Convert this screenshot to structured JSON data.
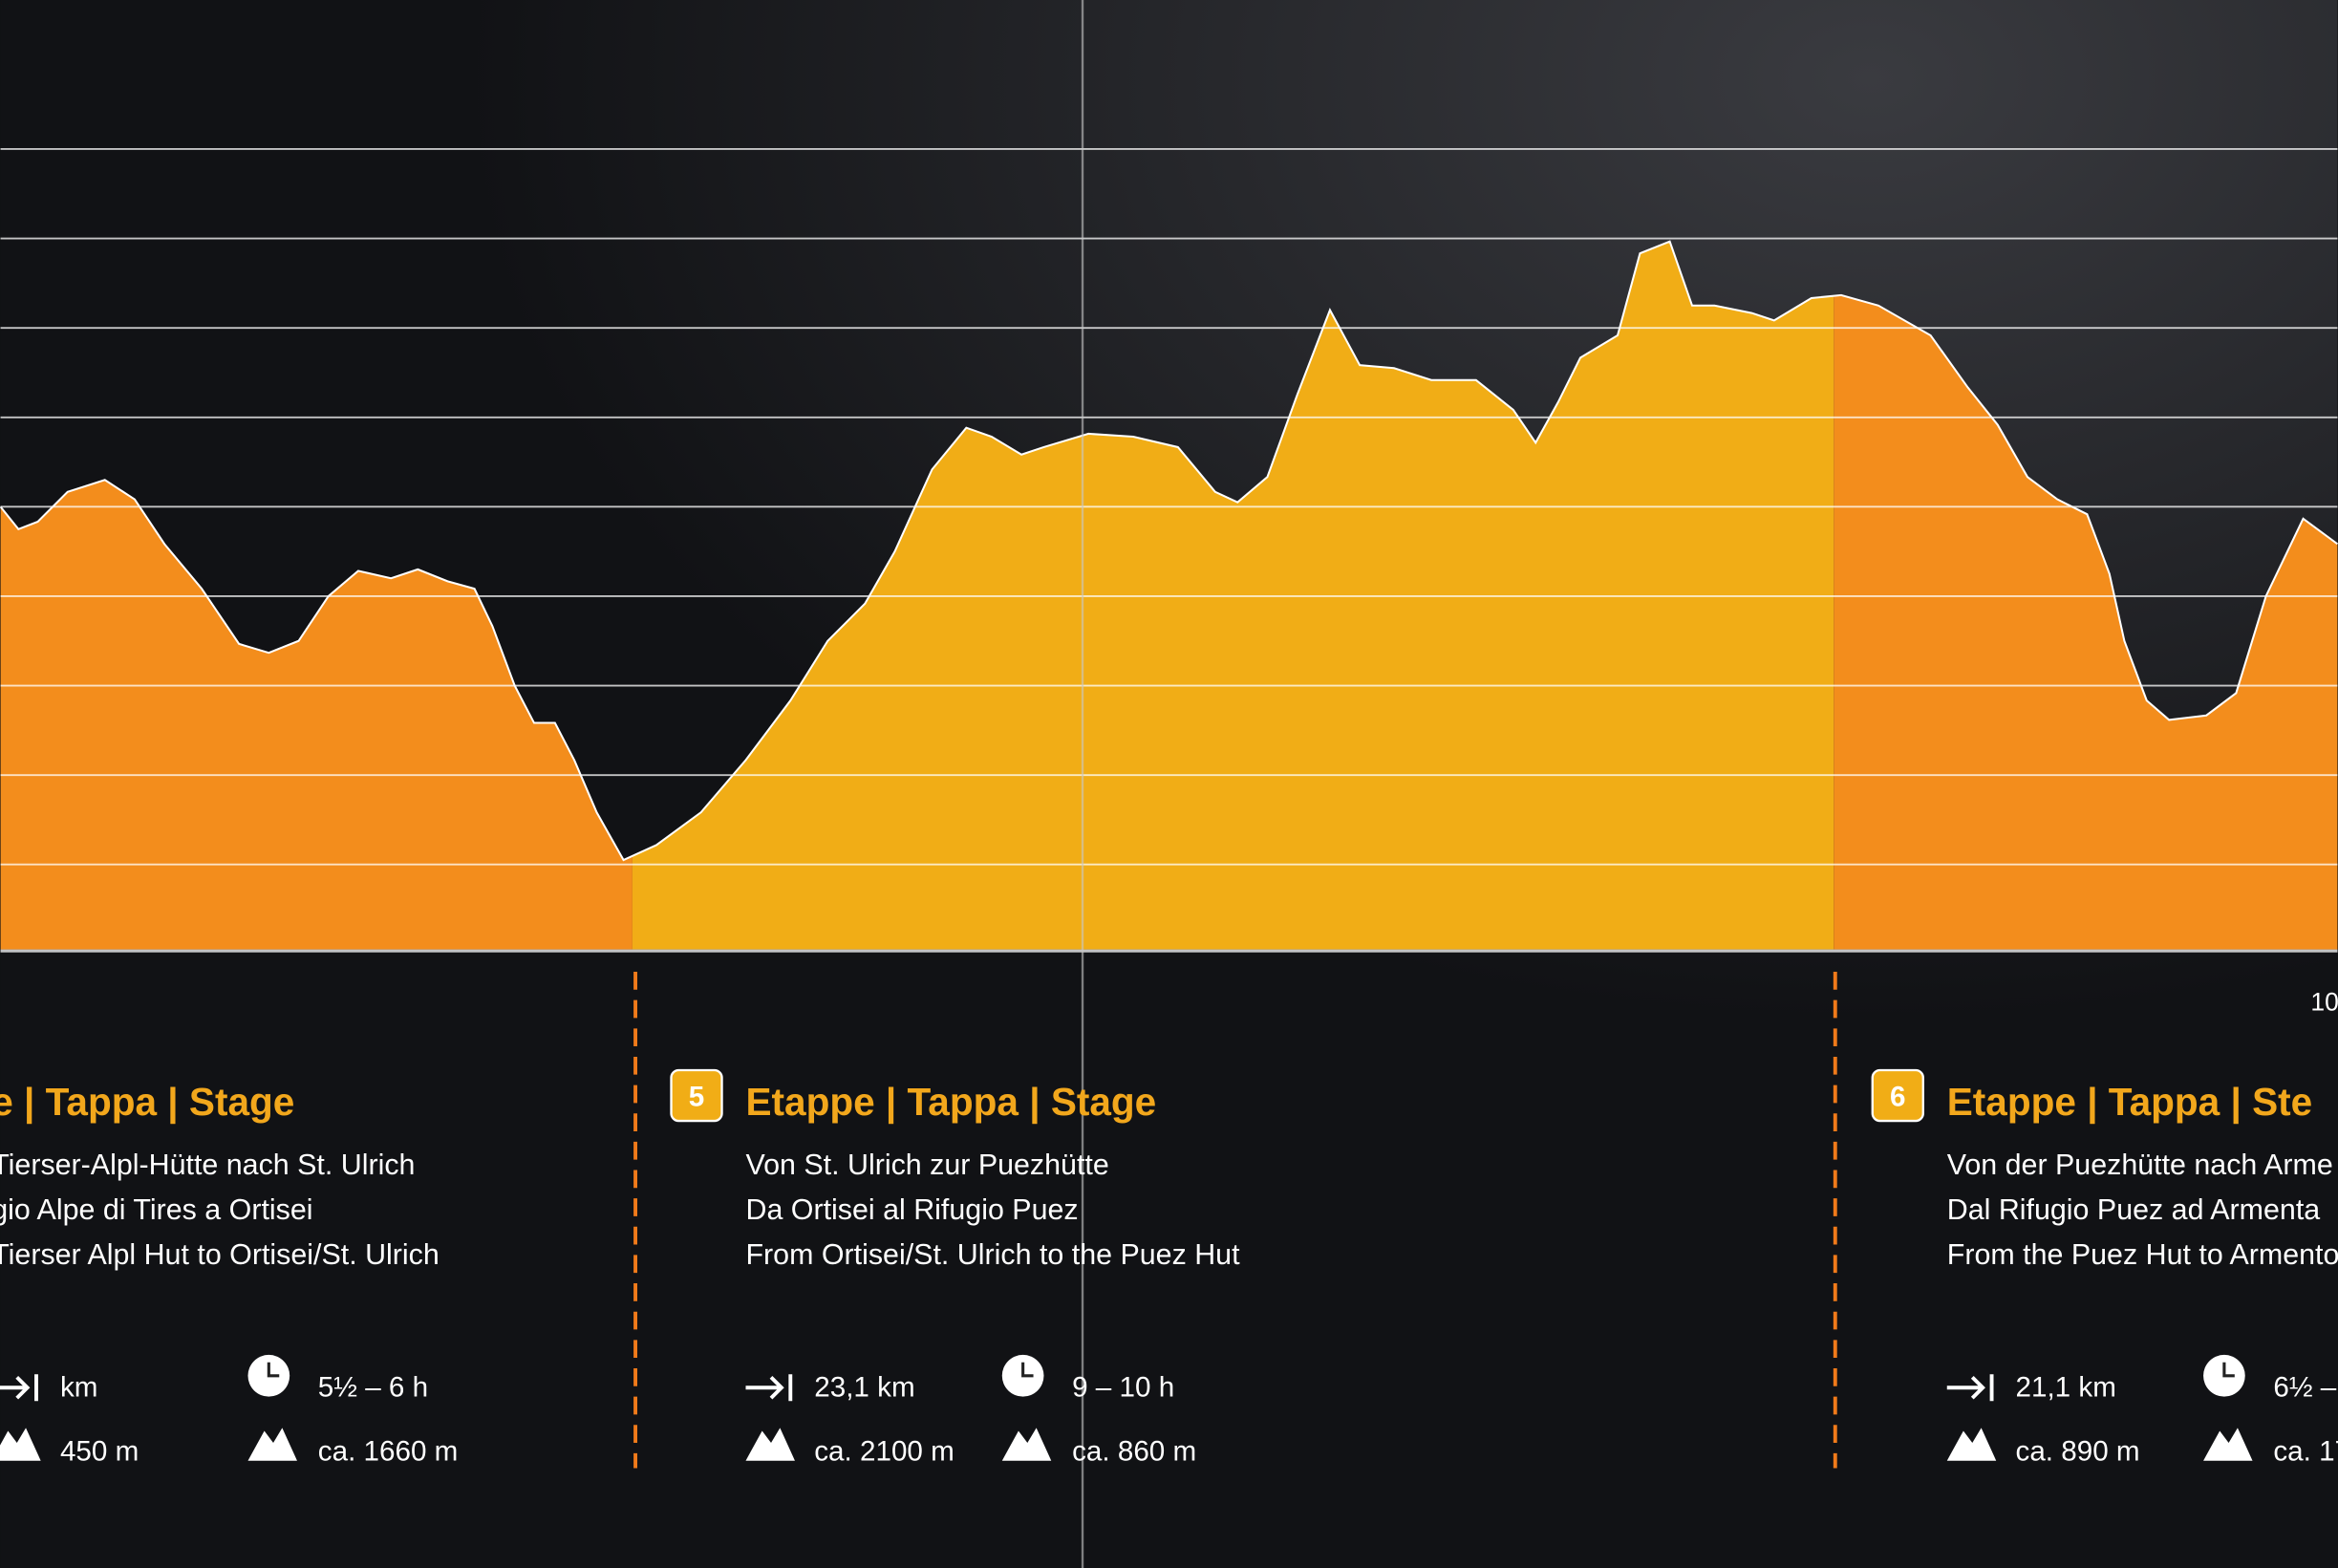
{
  "axis_label": "10",
  "stages": [
    {
      "title": "e | Tappa | Stage",
      "lines": [
        "Tierser-Alpl-Hütte nach St. Ulrich",
        "gio Alpe di Tires a Ortisei",
        "Tierser Alpl Hut to Ortisei/St. Ulrich"
      ],
      "distance": "km",
      "duration": "5½ – 6 h",
      "ascent": "450 m",
      "descent": "ca. 1660 m"
    },
    {
      "number": "5",
      "title": "Etappe | Tappa | Stage",
      "lines": [
        "Von St. Ulrich zur Puezhütte",
        "Da Ortisei al Rifugio Puez",
        "From Ortisei/St. Ulrich to the Puez Hut"
      ],
      "distance": "23,1 km",
      "duration": "9 – 10 h",
      "ascent": "ca. 2100 m",
      "descent": "ca. 860 m"
    },
    {
      "number": "6",
      "title": "Etappe | Tappa | Ste",
      "lines": [
        "Von der Puezhütte nach Arme",
        "Dal Rifugio Puez ad Armenta",
        "From the Puez Hut to Armento"
      ],
      "distance": "21,1 km",
      "duration": "6½ – ",
      "ascent": "ca. 890 m",
      "descent": "ca. 17"
    }
  ]
}
